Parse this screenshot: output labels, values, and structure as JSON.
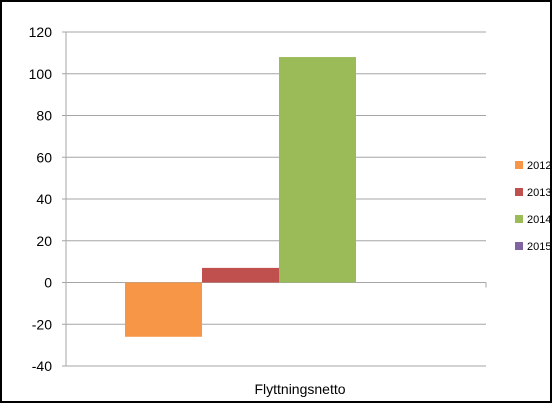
{
  "chart_data": {
    "type": "bar",
    "categories": [
      "Flyttningsnetto"
    ],
    "series": [
      {
        "name": "2012",
        "values": [
          -26
        ],
        "color": "#F79646"
      },
      {
        "name": "2013",
        "values": [
          7
        ],
        "color": "#C0504D"
      },
      {
        "name": "2014",
        "values": [
          108
        ],
        "color": "#9BBB59"
      },
      {
        "name": "2015",
        "values": [
          0
        ],
        "color": "#8064A2"
      }
    ],
    "ylim": [
      -40,
      120
    ],
    "yticks": [
      120,
      100,
      80,
      60,
      40,
      20,
      0,
      -20,
      -40
    ],
    "grid": true,
    "legend": "right"
  }
}
